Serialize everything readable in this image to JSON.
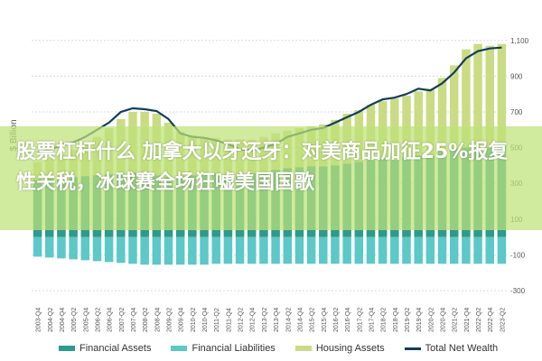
{
  "headline": "股票杠杆什么 加拿大以牙还牙：对美商品加征25%报复性关税，冰球赛全场狂嘘美国国歌",
  "chart_data": {
    "type": "bar",
    "ylabel": "$ Billion",
    "ylim": [
      -300,
      1200
    ],
    "yticks": [
      -300,
      -100,
      100,
      300,
      500,
      700,
      900,
      1100
    ],
    "ytick_labels": [
      "-300",
      "-100",
      "100",
      "300",
      "500",
      "700",
      "900",
      "1,100"
    ],
    "grid": true,
    "legend_position": "bottom",
    "x": [
      "2003-Q4",
      "2004-Q2",
      "2004-Q4",
      "2005-Q2",
      "2005-Q4",
      "2006-Q2",
      "2006-Q4",
      "2007-Q2",
      "2007-Q4",
      "2008-Q2",
      "2008-Q4",
      "2009-Q2",
      "2009-Q4",
      "2010-Q2",
      "2010-Q4",
      "2011-Q2",
      "2011-Q4",
      "2012-Q2",
      "2012-Q4",
      "2013-Q2",
      "2013-Q4",
      "2014-Q2",
      "2014-Q4",
      "2015-Q2",
      "2015-Q4",
      "2016-Q2",
      "2016-Q4",
      "2017-Q2",
      "2017-Q4",
      "2018-Q2",
      "2018-Q4",
      "2019-Q2",
      "2019-Q4",
      "2020-Q2",
      "2020-Q4",
      "2021-Q2",
      "2021-Q4",
      "2022-Q2",
      "2022-Q4",
      "2023-Q2"
    ],
    "series": [
      {
        "name": "Financial Assets",
        "color": "#2e9a8c",
        "values": [
          320,
          325,
          330,
          335,
          340,
          345,
          350,
          355,
          360,
          360,
          345,
          335,
          340,
          345,
          350,
          355,
          345,
          350,
          355,
          365,
          375,
          385,
          390,
          395,
          395,
          400,
          410,
          420,
          430,
          440,
          430,
          445,
          455,
          450,
          480,
          495,
          500,
          495,
          500,
          510
        ]
      },
      {
        "name": "Financial Liabilities",
        "color": "#5cc8c8",
        "values": [
          -110,
          -115,
          -120,
          -125,
          -130,
          -135,
          -140,
          -145,
          -150,
          -155,
          -155,
          -155,
          -155,
          -155,
          -155,
          -150,
          -150,
          -150,
          -150,
          -150,
          -150,
          -150,
          -150,
          -150,
          -150,
          -150,
          -150,
          -150,
          -150,
          -150,
          -150,
          -150,
          -150,
          -150,
          -150,
          -150,
          -150,
          -150,
          -150,
          -150
        ]
      },
      {
        "name": "Housing Assets",
        "color": "#c9dc84",
        "values": [
          420,
          440,
          460,
          490,
          520,
          560,
          610,
          660,
          700,
          700,
          690,
          640,
          590,
          570,
          560,
          555,
          545,
          545,
          545,
          560,
          580,
          595,
          610,
          620,
          630,
          655,
          690,
          710,
          740,
          760,
          775,
          790,
          815,
          830,
          890,
          960,
          1050,
          1080,
          1070,
          1080
        ]
      },
      {
        "name": "Total Net Wealth",
        "color": "#123e5a",
        "values": [
          470,
          490,
          510,
          530,
          560,
          600,
          640,
          700,
          720,
          715,
          705,
          660,
          580,
          560,
          555,
          540,
          520,
          490,
          485,
          500,
          520,
          560,
          580,
          600,
          610,
          640,
          670,
          700,
          740,
          770,
          780,
          800,
          830,
          820,
          860,
          920,
          1000,
          1040,
          1055,
          1060
        ]
      }
    ]
  }
}
